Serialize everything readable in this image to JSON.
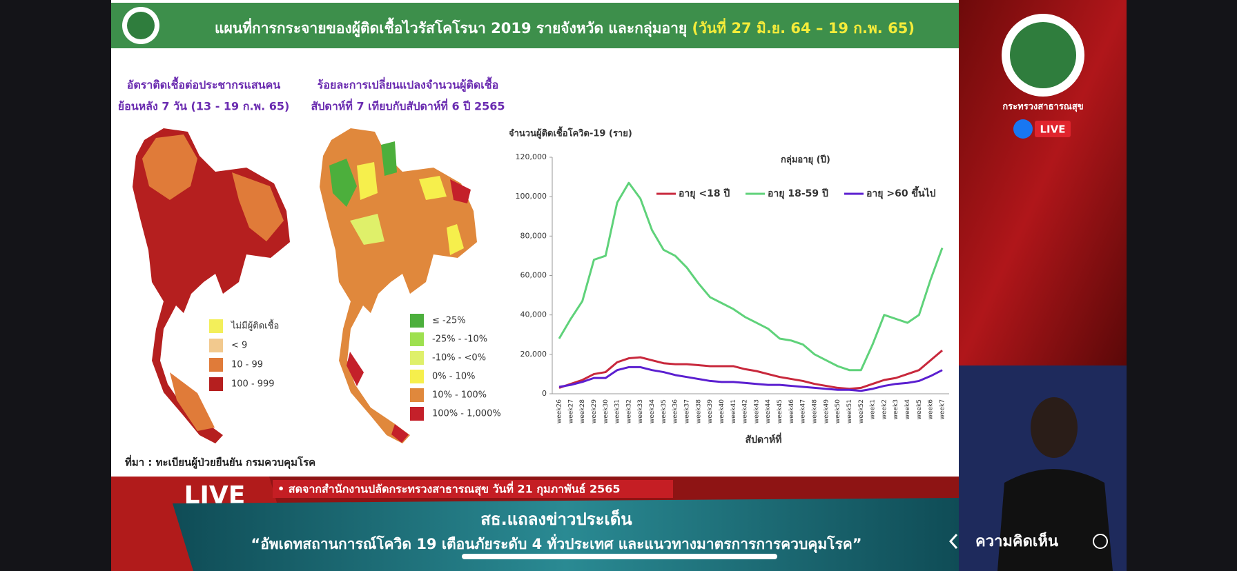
{
  "header": {
    "title": "แผนที่การกระจายของผู้ติดเชื้อไวรัสโคโรนา 2019 รายจังหวัด และกลุ่มอายุ",
    "date": "(วันที่ 27 มิ.ย. 64 – 19 ก.พ. 65)"
  },
  "map_left": {
    "title_lines": [
      "อัตราติดเชื้อต่อประชากรแสนคน",
      "ย้อนหลัง 7 วัน (13 - 19 ก.พ. 65)"
    ],
    "legend": [
      {
        "label": "ไม่มีผู้ติดเชื้อ",
        "color": "#f3ef5a"
      },
      {
        "label": "< 9",
        "color": "#f2c98e"
      },
      {
        "label": "10 - 99",
        "color": "#e07b39"
      },
      {
        "label": "100 - 999",
        "color": "#b51f1f"
      }
    ]
  },
  "map_right": {
    "title_lines": [
      "ร้อยละการเปลี่ยนแปลงจำนวนผู้ติดเชื้อ",
      "สัปดาห์ที่ 7 เทียบกับสัปดาห์ที่ 6 ปี 2565"
    ],
    "legend": [
      {
        "label": "≤ -25%",
        "color": "#4caf3c"
      },
      {
        "label": "-25% - -10%",
        "color": "#9ee04f"
      },
      {
        "label": "-10% - <0%",
        "color": "#dff06a"
      },
      {
        "label": "0% - 10%",
        "color": "#f6ef4c"
      },
      {
        "label": "10% - 100%",
        "color": "#e0883c"
      },
      {
        "label": "100% - 1,000%",
        "color": "#c4202a"
      }
    ]
  },
  "source": "ที่มา : ทะเบียนผู้ป่วยยืนยัน กรมควบคุมโรค",
  "chart_data": {
    "type": "line",
    "y_label": "จำนวนผู้ติดเชื้อโควิด-19 (ราย)",
    "x_label": "สัปดาห์ที่",
    "legend_title": "กลุ่มอายุ (ปี)",
    "categories": [
      "week26",
      "week27",
      "week28",
      "week29",
      "week30",
      "week31",
      "week32",
      "week33",
      "week34",
      "week35",
      "week36",
      "week37",
      "week38",
      "week39",
      "week40",
      "week41",
      "week42",
      "week43",
      "week44",
      "week45",
      "week46",
      "week47",
      "week48",
      "week49",
      "week50",
      "week51",
      "week52",
      "week1",
      "week2",
      "week3",
      "week4",
      "week5",
      "week6",
      "week7"
    ],
    "series": [
      {
        "name": "อายุ <18 ปี",
        "color": "#c8283c",
        "values": [
          3000,
          5000,
          7000,
          10000,
          11000,
          16000,
          18000,
          18500,
          17000,
          15500,
          15000,
          15000,
          14500,
          14000,
          14000,
          14000,
          12500,
          11500,
          10000,
          8500,
          7500,
          6500,
          5000,
          4000,
          3000,
          2500,
          3000,
          5000,
          7000,
          8000,
          10000,
          12000,
          17000,
          22000
        ]
      },
      {
        "name": "อายุ 18-59 ปี",
        "color": "#5fd27a",
        "values": [
          28000,
          38000,
          47000,
          68000,
          70000,
          97000,
          107000,
          99000,
          83000,
          73000,
          70000,
          64000,
          56000,
          49000,
          46000,
          43000,
          39000,
          36000,
          33000,
          28000,
          27000,
          25000,
          20000,
          17000,
          14000,
          12000,
          12000,
          25000,
          40000,
          38000,
          36000,
          40000,
          58000,
          74000
        ]
      },
      {
        "name": "อายุ >60 ขึ้นไป",
        "color": "#5b1fd0",
        "values": [
          3500,
          4500,
          6000,
          8000,
          8000,
          12000,
          13500,
          13500,
          12000,
          11000,
          9500,
          8500,
          7500,
          6500,
          6000,
          6000,
          5500,
          5000,
          4500,
          4500,
          4000,
          3500,
          3000,
          2500,
          2000,
          2000,
          1500,
          2500,
          4000,
          5000,
          5500,
          6500,
          9000,
          12000
        ]
      }
    ],
    "ylim": [
      0,
      120000
    ],
    "yticks": [
      0,
      {
        "value": 20000,
        "label": "20,000"
      },
      {
        "value": 40000,
        "label": "40,000"
      },
      {
        "value": 60000,
        "label": "60,000"
      },
      {
        "value": 80000,
        "label": "80,000"
      },
      {
        "value": 100000,
        "label": "100,000"
      },
      {
        "value": 120000,
        "label": "120,000"
      }
    ],
    "grid": false
  },
  "side_panel": {
    "ministry": "กระทรวงสาธารณสุข",
    "live_badge": "LIVE"
  },
  "banner": {
    "live": "LIVE",
    "strip": "• สดจากสำนักงานปลัดกระทรวงสาธารณสุข วันที่ 21 กุมภาพันธ์ 2565",
    "heading": "สธ.แถลงข่าวประเด็น",
    "topic": "“อัพเดทสถานการณ์โควิด 19 เตือนภัยระดับ 4 ทั่วประเทศ และแนวทางมาตรการการควบคุมโรค”"
  },
  "comments": "ความคิดเห็น"
}
